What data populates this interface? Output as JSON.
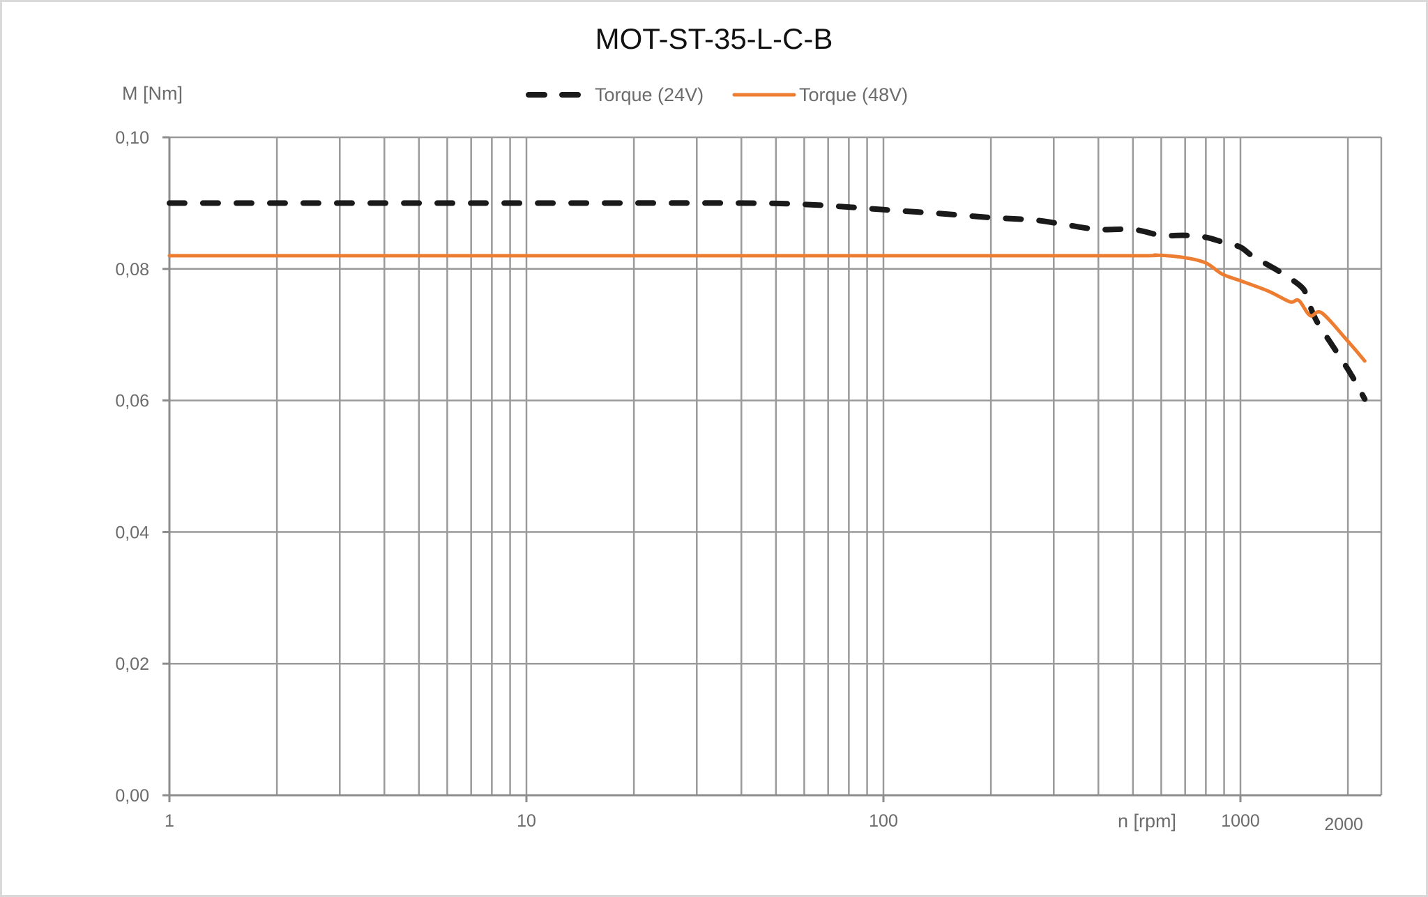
{
  "chart_data": {
    "type": "line",
    "title": "MOT-ST-35-L-C-B",
    "xlabel": "n [rpm]",
    "ylabel": "M [Nm]",
    "x_scale": "log",
    "xlim": [
      1,
      2500
    ],
    "ylim": [
      0,
      0.1
    ],
    "grid": true,
    "legend_position": "top",
    "x_tick_labels": [
      {
        "value": 1,
        "label": "1"
      },
      {
        "value": 10,
        "label": "10"
      },
      {
        "value": 100,
        "label": "100"
      },
      {
        "value": 1000,
        "label": "1000"
      },
      {
        "value": 2000,
        "label": "2000"
      }
    ],
    "y_tick_labels": [
      {
        "value": 0.0,
        "label": "0,00"
      },
      {
        "value": 0.02,
        "label": "0,02"
      },
      {
        "value": 0.04,
        "label": "0,04"
      },
      {
        "value": 0.06,
        "label": "0,06"
      },
      {
        "value": 0.08,
        "label": "0,08"
      },
      {
        "value": 0.1,
        "label": "0,10"
      }
    ],
    "series": [
      {
        "name": "Torque (24V)",
        "color": "#1a1a1a",
        "style": "dashed",
        "x": [
          1,
          10,
          40,
          60,
          80,
          100,
          145,
          200,
          267,
          325,
          400,
          500,
          600,
          700,
          800,
          900,
          1000,
          1084,
          1286,
          1486,
          1536,
          1634,
          1818,
          2039,
          2230
        ],
        "y": [
          0.09,
          0.09,
          0.09,
          0.0898,
          0.0894,
          0.089,
          0.0884,
          0.0878,
          0.0874,
          0.0867,
          0.086,
          0.086,
          0.0851,
          0.0851,
          0.0848,
          0.084,
          0.0833,
          0.0819,
          0.0796,
          0.0772,
          0.0755,
          0.0721,
          0.0682,
          0.064,
          0.0602
        ]
      },
      {
        "name": "Torque (48V)",
        "color": "#ed7d31",
        "style": "solid",
        "x": [
          1,
          10,
          100,
          500,
          580,
          700,
          800,
          890,
          1000,
          1200,
          1376,
          1457,
          1568,
          1690,
          2000,
          2230
        ],
        "y": [
          0.082,
          0.082,
          0.082,
          0.082,
          0.0821,
          0.0817,
          0.0809,
          0.0792,
          0.0782,
          0.0766,
          0.075,
          0.0752,
          0.0729,
          0.0733,
          0.069,
          0.066
        ]
      }
    ]
  },
  "legend": {
    "items": [
      {
        "label": "Torque (24V)"
      },
      {
        "label": "Torque (48V)"
      }
    ]
  }
}
